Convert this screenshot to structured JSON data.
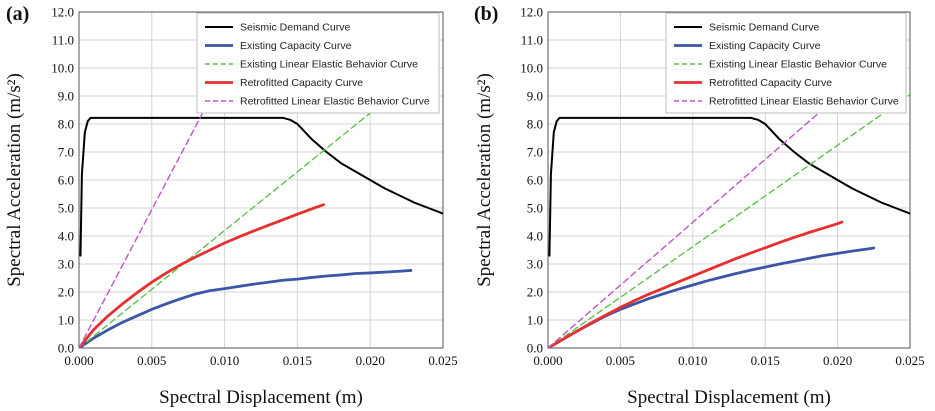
{
  "chart_data": [
    {
      "type": "line",
      "panel_label": "(a)",
      "xlabel": "Spectral Displacement (m)",
      "ylabel": "Spectral Acceleration (m/s²)",
      "xlim": [
        0,
        0.025
      ],
      "ylim": [
        0,
        12
      ],
      "x_ticks": [
        "0.000",
        "0.005",
        "0.010",
        "0.015",
        "0.020",
        "0.025"
      ],
      "y_ticks": [
        "0.0",
        "1.0",
        "2.0",
        "3.0",
        "4.0",
        "5.0",
        "6.0",
        "7.0",
        "8.0",
        "9.0",
        "10.0",
        "11.0",
        "12.0"
      ],
      "grid": true,
      "legend_position": "top-right",
      "series": [
        {
          "name": "Seismic Demand Curve",
          "color": "#000000",
          "dash": "solid",
          "x": [
            0.0001,
            0.0002,
            0.0004,
            0.0006,
            0.0008,
            0.002,
            0.006,
            0.01,
            0.014,
            0.0145,
            0.015,
            0.016,
            0.017,
            0.018,
            0.019,
            0.02,
            0.021,
            0.022,
            0.023,
            0.024,
            0.025
          ],
          "y": [
            3.3,
            6.2,
            7.7,
            8.1,
            8.22,
            8.22,
            8.22,
            8.22,
            8.22,
            8.15,
            8.0,
            7.45,
            7.0,
            6.6,
            6.3,
            6.0,
            5.7,
            5.45,
            5.2,
            5.0,
            4.8
          ]
        },
        {
          "name": "Existing Capacity Curve",
          "color": "#3b55a7",
          "dash": "solid",
          "x": [
            0.0,
            0.001,
            0.002,
            0.003,
            0.004,
            0.005,
            0.006,
            0.007,
            0.008,
            0.009,
            0.01,
            0.011,
            0.012,
            0.013,
            0.014,
            0.015,
            0.016,
            0.017,
            0.018,
            0.019,
            0.02,
            0.021,
            0.022,
            0.0228
          ],
          "y": [
            0.0,
            0.35,
            0.65,
            0.92,
            1.15,
            1.38,
            1.58,
            1.76,
            1.93,
            2.05,
            2.12,
            2.2,
            2.28,
            2.35,
            2.42,
            2.46,
            2.52,
            2.57,
            2.61,
            2.66,
            2.68,
            2.71,
            2.74,
            2.77
          ]
        },
        {
          "name": "Existing Linear Elastic Behavior Curve",
          "color": "#5cc249",
          "dash": "dashed",
          "x": [
            0.0,
            0.0205
          ],
          "y": [
            0.0,
            8.6
          ]
        },
        {
          "name": "Retrofitted Capacity Curve",
          "color": "#e63030",
          "dash": "solid",
          "x": [
            0.0,
            0.001,
            0.002,
            0.003,
            0.004,
            0.005,
            0.006,
            0.007,
            0.008,
            0.009,
            0.01,
            0.011,
            0.012,
            0.013,
            0.014,
            0.015,
            0.016,
            0.0168
          ],
          "y": [
            0.0,
            0.65,
            1.15,
            1.58,
            1.98,
            2.35,
            2.68,
            2.98,
            3.25,
            3.5,
            3.75,
            3.97,
            4.18,
            4.38,
            4.58,
            4.78,
            4.97,
            5.12
          ]
        },
        {
          "name": "Retrofitted Linear Elastic Behavior Curve",
          "color": "#c056c0",
          "dash": "dashed",
          "x": [
            0.0,
            0.0087
          ],
          "y": [
            0.0,
            8.6
          ]
        }
      ]
    },
    {
      "type": "line",
      "panel_label": "(b)",
      "xlabel": "Spectral Displacement (m)",
      "ylabel": "Spectral Acceleration (m/s²)",
      "xlim": [
        0,
        0.025
      ],
      "ylim": [
        0,
        12
      ],
      "x_ticks": [
        "0.000",
        "0.005",
        "0.010",
        "0.015",
        "0.020",
        "0.025"
      ],
      "y_ticks": [
        "0.0",
        "1.0",
        "2.0",
        "3.0",
        "4.0",
        "5.0",
        "6.0",
        "7.0",
        "8.0",
        "9.0",
        "10.0",
        "11.0",
        "12.0"
      ],
      "grid": true,
      "legend_position": "top-right",
      "series": [
        {
          "name": "Seismic Demand Curve",
          "color": "#000000",
          "dash": "solid",
          "x": [
            0.0001,
            0.0002,
            0.0004,
            0.0006,
            0.0008,
            0.002,
            0.006,
            0.01,
            0.014,
            0.0145,
            0.015,
            0.016,
            0.017,
            0.018,
            0.019,
            0.02,
            0.021,
            0.022,
            0.023,
            0.024,
            0.025
          ],
          "y": [
            3.3,
            6.2,
            7.7,
            8.1,
            8.22,
            8.22,
            8.22,
            8.22,
            8.22,
            8.15,
            8.0,
            7.45,
            7.0,
            6.6,
            6.3,
            6.0,
            5.7,
            5.45,
            5.2,
            5.0,
            4.8
          ]
        },
        {
          "name": "Existing Capacity Curve",
          "color": "#3b55a7",
          "dash": "solid",
          "x": [
            0.0,
            0.001,
            0.002,
            0.003,
            0.004,
            0.005,
            0.006,
            0.007,
            0.008,
            0.009,
            0.01,
            0.011,
            0.012,
            0.013,
            0.014,
            0.015,
            0.016,
            0.017,
            0.018,
            0.019,
            0.02,
            0.021,
            0.022,
            0.0225
          ],
          "y": [
            0.0,
            0.3,
            0.6,
            0.88,
            1.15,
            1.38,
            1.58,
            1.77,
            1.94,
            2.1,
            2.25,
            2.4,
            2.53,
            2.66,
            2.78,
            2.89,
            3.0,
            3.1,
            3.2,
            3.3,
            3.38,
            3.46,
            3.53,
            3.57
          ]
        },
        {
          "name": "Existing Linear Elastic Behavior Curve",
          "color": "#5cc249",
          "dash": "dashed",
          "x": [
            0.0,
            0.025
          ],
          "y": [
            0.0,
            9.05
          ]
        },
        {
          "name": "Retrofitted Capacity Curve",
          "color": "#e63030",
          "dash": "solid",
          "x": [
            0.0,
            0.001,
            0.002,
            0.003,
            0.004,
            0.005,
            0.006,
            0.007,
            0.008,
            0.009,
            0.01,
            0.011,
            0.012,
            0.013,
            0.014,
            0.015,
            0.016,
            0.017,
            0.018,
            0.019,
            0.02,
            0.0203
          ],
          "y": [
            0.0,
            0.3,
            0.6,
            0.9,
            1.18,
            1.45,
            1.7,
            1.93,
            2.14,
            2.36,
            2.57,
            2.78,
            2.99,
            3.2,
            3.39,
            3.58,
            3.77,
            3.95,
            4.12,
            4.28,
            4.44,
            4.5
          ]
        },
        {
          "name": "Retrofitted Linear Elastic Behavior Curve",
          "color": "#c056c0",
          "dash": "dashed",
          "x": [
            0.0,
            0.0225
          ],
          "y": [
            0.0,
            10.1
          ]
        }
      ]
    }
  ]
}
